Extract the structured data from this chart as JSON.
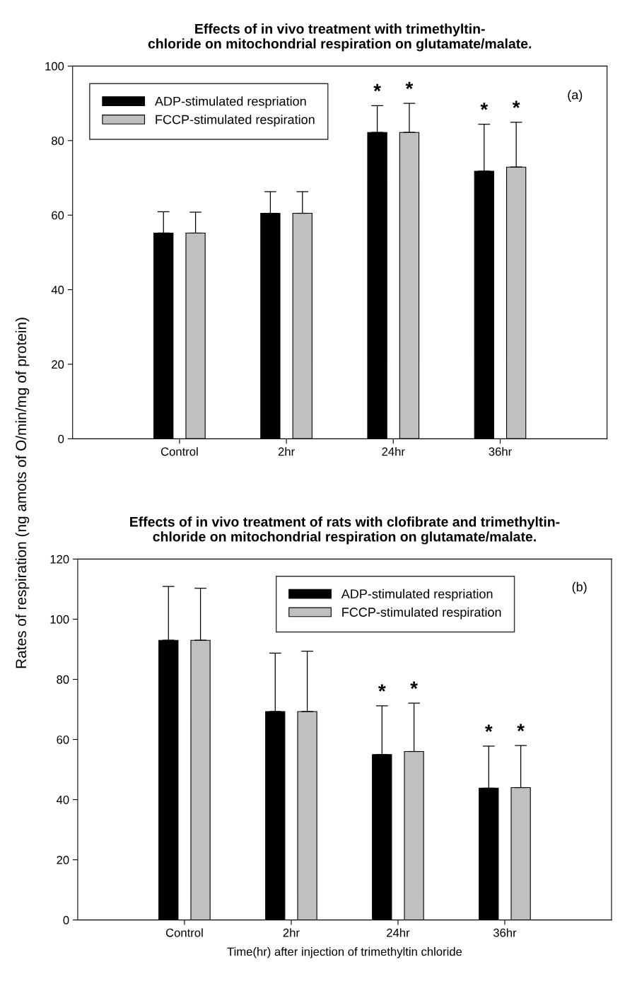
{
  "chart_data": [
    {
      "type": "bar",
      "title": "Effects of in vivo treatment with trimethyltin-\nchloride on mitochondrial respiration on glutamate/malate.",
      "ylabel": "Rates of respiration (ng amots of O/min/mg of protein)",
      "categories": [
        "Control",
        "2hr",
        "24hr",
        "36hr"
      ],
      "series": [
        {
          "name": "ADP-stimulated respriation",
          "color": "#000000",
          "values": [
            55.2,
            60.5,
            82.2,
            71.8
          ],
          "errors": [
            [
              55.2,
              60.9
            ],
            [
              60.5,
              66.3
            ],
            [
              82.2,
              89.4
            ],
            [
              71.8,
              84.4
            ]
          ]
        },
        {
          "name": "FCCP-stimulated respiration",
          "color": "#c0c0c0",
          "values": [
            55.2,
            60.5,
            82.2,
            72.9
          ],
          "errors": [
            [
              55.2,
              60.8
            ],
            [
              60.5,
              66.3
            ],
            [
              82.2,
              90.0
            ],
            [
              72.9,
              84.9
            ]
          ]
        }
      ],
      "ylim": [
        0,
        100
      ],
      "yticks": [
        0,
        20,
        40,
        60,
        80,
        100
      ],
      "grid": false,
      "legend": "top left",
      "annotations": [
        "(a)",
        "*",
        "*",
        "*",
        "*"
      ]
    },
    {
      "type": "bar",
      "title": "Effects of in vivo treatment of rats with clofibrate and trimethyltin-\nchloride on mitochondrial respiration on glutamate/malate.",
      "xlabel": "Time(hr) after injection of trimethyltin chloride",
      "categories": [
        "Control",
        "2hr",
        "24hr",
        "36hr"
      ],
      "series": [
        {
          "name": "ADP-stimulated respriation",
          "color": "#000000",
          "values": [
            93.0,
            69.3,
            55.0,
            43.8
          ],
          "errors": [
            [
              93.0,
              110.9
            ],
            [
              69.3,
              88.7
            ],
            [
              55.0,
              71.2
            ],
            [
              43.8,
              57.8
            ]
          ]
        },
        {
          "name": "FCCP-stimulated respiration",
          "color": "#c0c0c0",
          "values": [
            93.0,
            69.3,
            56.0,
            44.0
          ],
          "errors": [
            [
              93.0,
              110.3
            ],
            [
              69.3,
              89.4
            ],
            [
              56.0,
              72.1
            ],
            [
              44.0,
              58.0
            ]
          ]
        }
      ],
      "ylim": [
        0,
        120
      ],
      "yticks": [
        0,
        20,
        40,
        60,
        80,
        100,
        120
      ],
      "grid": false,
      "legend": "top right",
      "annotations": [
        "(b)",
        "*",
        "*",
        "*",
        "*"
      ]
    }
  ]
}
